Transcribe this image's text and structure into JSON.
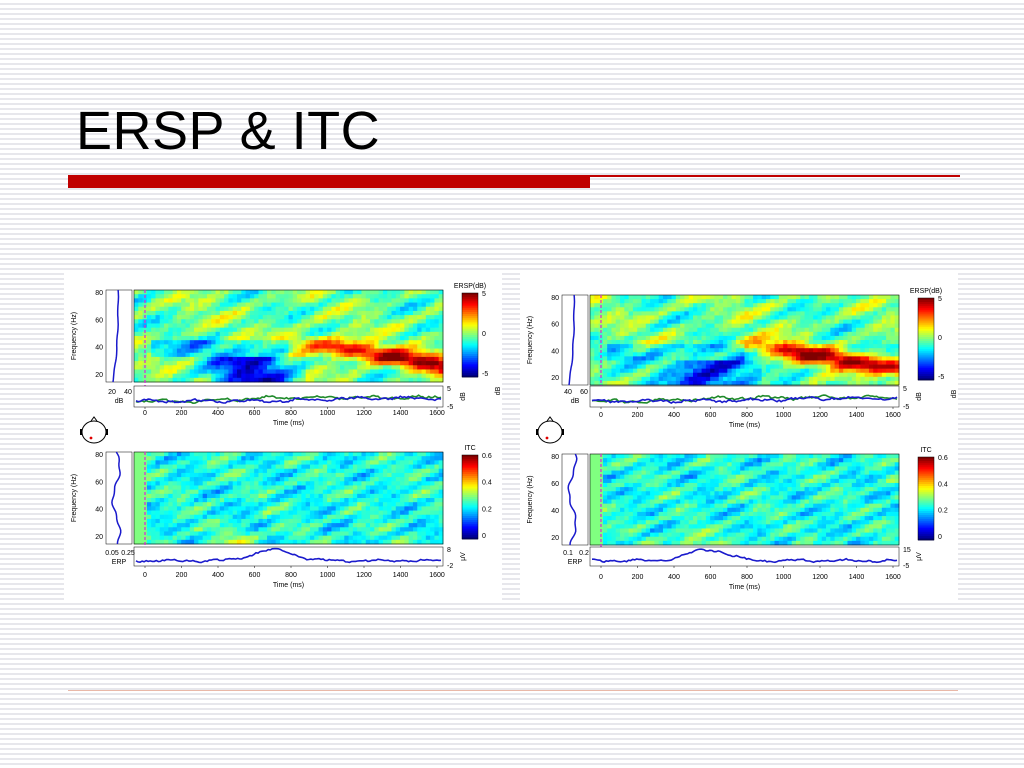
{
  "slide": {
    "title": "ERSP & ITC",
    "colors": {
      "title_bar": "#c00000",
      "bottom_rule": "#e9b8a8",
      "trace": "#1a1acc",
      "baseline_trace": "#1f8a2a",
      "event_marker": "#e020e0"
    }
  },
  "panels": [
    {
      "id": "left",
      "ersp": {
        "colorbar_title": "ERSP(dB)",
        "colorbar_ticks": [
          "5",
          "0",
          "-5"
        ],
        "y_ticks": [
          "80",
          "60",
          "40",
          "20"
        ],
        "y_label": "Frequency (Hz)",
        "side_ticks": [
          "20",
          "40"
        ],
        "side_label": "dB",
        "trace_ticks": [
          "5",
          "-5"
        ],
        "trace_unit": "dB",
        "x_ticks": [
          "0",
          "200",
          "400",
          "600",
          "800",
          "1000",
          "1200",
          "1400",
          "1600"
        ],
        "x_label": "Time (ms)"
      },
      "itc": {
        "colorbar_title": "ITC",
        "colorbar_ticks": [
          "0.6",
          "0.4",
          "0.2",
          "0"
        ],
        "y_ticks": [
          "80",
          "60",
          "40",
          "20"
        ],
        "y_label": "Frequency (Hz)",
        "side_ticks": [
          "0.05",
          "0.25"
        ],
        "side_label": "ERP",
        "trace_ticks": [
          "8",
          "-2"
        ],
        "trace_unit": "μV",
        "x_ticks": [
          "0",
          "200",
          "400",
          "600",
          "800",
          "1000",
          "1200",
          "1400",
          "1600"
        ],
        "x_label": "Time (ms)"
      }
    },
    {
      "id": "right",
      "ersp": {
        "colorbar_title": "ERSP(dB)",
        "colorbar_ticks": [
          "5",
          "0",
          "-5"
        ],
        "y_ticks": [
          "80",
          "60",
          "40",
          "20"
        ],
        "y_label": "Frequency (Hz)",
        "side_ticks": [
          "40",
          "60"
        ],
        "side_label": "dB",
        "trace_ticks": [
          "5",
          "-5"
        ],
        "trace_unit": "dB",
        "x_ticks": [
          "0",
          "200",
          "400",
          "600",
          "800",
          "1000",
          "1200",
          "1400",
          "1600"
        ],
        "x_label": "Time (ms)"
      },
      "itc": {
        "colorbar_title": "ITC",
        "colorbar_ticks": [
          "0.6",
          "0.4",
          "0.2",
          "0"
        ],
        "y_ticks": [
          "80",
          "60",
          "40",
          "20"
        ],
        "y_label": "Frequency (Hz)",
        "side_ticks": [
          "0.1",
          "0.2"
        ],
        "side_label": "ERP",
        "trace_ticks": [
          "15",
          "-5"
        ],
        "trace_unit": "μV",
        "x_ticks": [
          "0",
          "200",
          "400",
          "600",
          "800",
          "1000",
          "1200",
          "1400",
          "1600"
        ],
        "x_label": "Time (ms)"
      }
    }
  ]
}
